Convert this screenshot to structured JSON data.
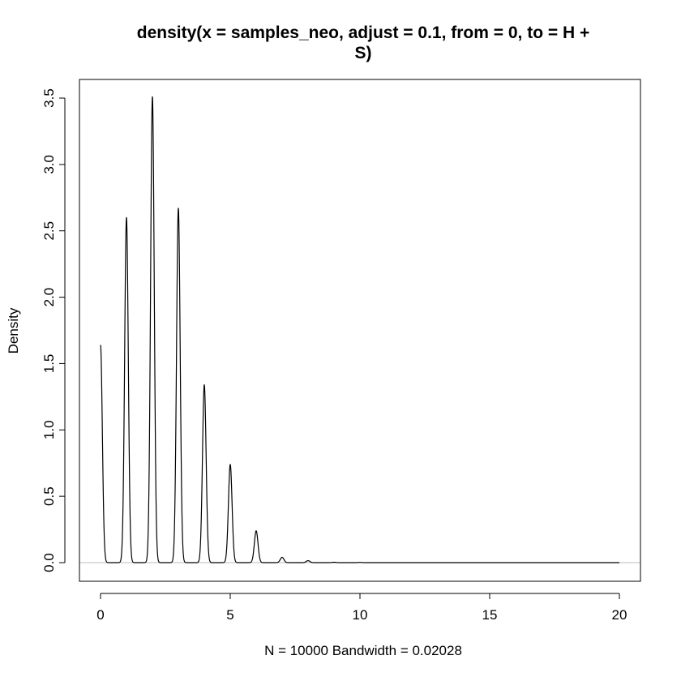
{
  "chart_data": {
    "type": "line",
    "title_line1": "density(x = samples_neo, adjust = 0.1, from = 0, to = H +",
    "title_line2": "S)",
    "xlabel": "N = 10000   Bandwidth = 0.02028",
    "ylabel": "Density",
    "xlim": [
      0,
      20
    ],
    "ylim": [
      0,
      3.5
    ],
    "xticks": [
      "0",
      "5",
      "10",
      "15",
      "20"
    ],
    "yticks": [
      "0.0",
      "0.5",
      "1.0",
      "1.5",
      "2.0",
      "2.5",
      "3.0",
      "3.5"
    ],
    "peaks": [
      {
        "x": 0,
        "y": 1.64
      },
      {
        "x": 1,
        "y": 2.6
      },
      {
        "x": 2,
        "y": 3.51
      },
      {
        "x": 3,
        "y": 2.67
      },
      {
        "x": 4,
        "y": 1.34
      },
      {
        "x": 5,
        "y": 0.74
      },
      {
        "x": 6,
        "y": 0.24
      },
      {
        "x": 7,
        "y": 0.04
      },
      {
        "x": 8,
        "y": 0.015
      },
      {
        "x": 9,
        "y": 0.003
      },
      {
        "x": 10,
        "y": 0.002
      }
    ],
    "bandwidth": 0.02028,
    "x_range": [
      0,
      20
    ],
    "zero_line": true,
    "grid": false
  },
  "colors": {
    "line": "#000000",
    "zero_line": "#bebebe",
    "background": "#ffffff"
  }
}
